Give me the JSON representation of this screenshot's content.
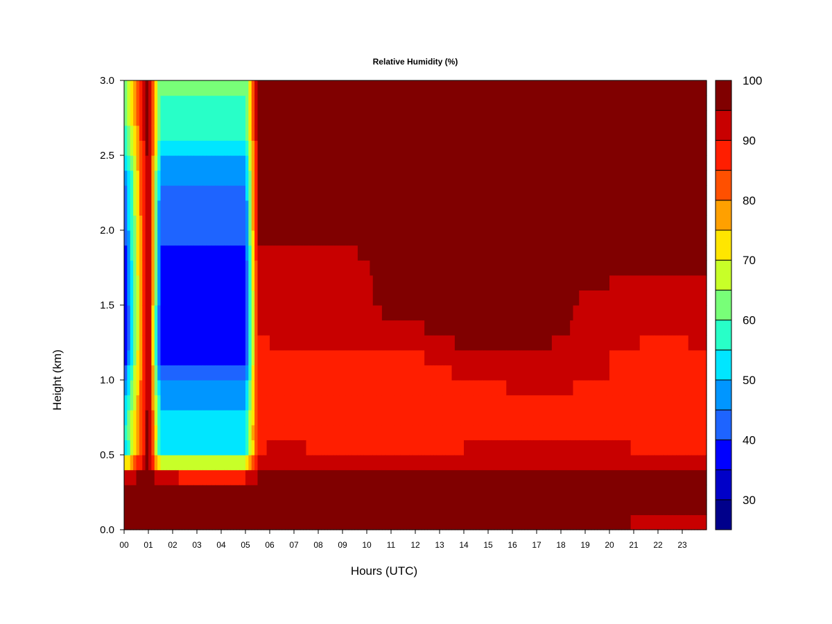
{
  "chart_data": {
    "type": "heatmap",
    "title": "Relative Humidity (%)",
    "xlabel": "Hours (UTC)",
    "ylabel": "Height (km)",
    "xlim": [
      0,
      24
    ],
    "ylim": [
      0,
      3
    ],
    "x_ticks": [
      "00",
      "01",
      "02",
      "03",
      "04",
      "05",
      "06",
      "07",
      "08",
      "09",
      "10",
      "11",
      "12",
      "13",
      "14",
      "15",
      "16",
      "17",
      "18",
      "19",
      "20",
      "21",
      "22",
      "23"
    ],
    "y_ticks": [
      "0.0",
      "0.5",
      "1.0",
      "1.5",
      "2.0",
      "2.5",
      "3.0"
    ],
    "colorbar": {
      "min": 25,
      "max": 100,
      "step": 5,
      "ticks": [
        "30",
        "40",
        "50",
        "60",
        "70",
        "80",
        "90",
        "100"
      ],
      "colors": [
        "#00008b",
        "#0000c8",
        "#0000ff",
        "#1e64ff",
        "#0096ff",
        "#00e6ff",
        "#28ffc8",
        "#78ff78",
        "#c8ff28",
        "#ffe600",
        "#ffa000",
        "#ff5000",
        "#ff1e00",
        "#c80000",
        "#800000"
      ]
    },
    "height_levels_km": [
      0.0,
      0.1,
      0.2,
      0.3,
      0.4,
      0.5,
      0.6,
      0.7,
      0.8,
      0.9,
      1.0,
      1.1,
      1.2,
      1.3,
      1.4,
      1.5,
      1.6,
      1.7,
      1.8,
      1.9,
      2.0,
      2.1,
      2.2,
      2.3,
      2.4,
      2.5,
      2.6,
      2.7,
      2.8,
      2.9,
      3.0
    ],
    "profiles": [
      {
        "hour": 0.0,
        "rh": [
          98,
          98,
          98,
          96,
          88,
          50,
          52,
          53,
          50,
          46,
          42,
          37,
          33,
          32,
          32,
          33,
          33,
          34,
          35,
          36,
          38,
          40,
          41,
          41,
          44,
          51,
          55,
          58,
          60,
          60,
          60
        ]
      },
      {
        "hour": 1.0,
        "rh": [
          98,
          98,
          98,
          98,
          98,
          98,
          98,
          98,
          98,
          98,
          98,
          98,
          98,
          98,
          98,
          98,
          98,
          98,
          98,
          98,
          98,
          98,
          98,
          98,
          98,
          98,
          98,
          98,
          98,
          98,
          98
        ]
      },
      {
        "hour": 1.5,
        "rh": [
          98,
          98,
          98,
          95,
          86,
          52,
          54,
          54,
          51,
          47,
          43,
          38,
          35,
          35,
          36,
          37,
          38,
          38,
          38,
          39,
          41,
          42,
          43,
          44,
          46,
          52,
          56,
          58,
          59,
          60,
          60
        ]
      },
      {
        "hour": 3.0,
        "rh": [
          98,
          98,
          98,
          94,
          85,
          52,
          54,
          54,
          51,
          47,
          44,
          40,
          36,
          35,
          36,
          36,
          37,
          38,
          38,
          39,
          41,
          43,
          44,
          44,
          46,
          52,
          56,
          58,
          59,
          60,
          60
        ]
      },
      {
        "hour": 5.0,
        "rh": [
          98,
          98,
          98,
          94,
          85,
          52,
          54,
          54,
          51,
          47,
          44,
          40,
          36,
          35,
          36,
          36,
          37,
          38,
          38,
          39,
          41,
          43,
          44,
          44,
          46,
          52,
          56,
          58,
          59,
          60,
          60
        ]
      },
      {
        "hour": 5.5,
        "rh": [
          98,
          98,
          98,
          97,
          93,
          88,
          88,
          88,
          88,
          88,
          88,
          88,
          88,
          90,
          90,
          90,
          90,
          90,
          92,
          95,
          95,
          95,
          95,
          95,
          95,
          95,
          95,
          95,
          95,
          95,
          95
        ]
      },
      {
        "hour": 6.0,
        "rh": [
          98,
          98,
          98,
          98,
          97,
          93,
          88,
          88,
          88,
          88,
          88,
          88,
          88,
          92,
          92,
          92,
          92,
          92,
          92,
          95,
          98,
          98,
          98,
          98,
          98,
          98,
          98,
          98,
          98,
          98,
          98
        ]
      },
      {
        "hour": 9.0,
        "rh": [
          98,
          98,
          98,
          98,
          97,
          92,
          87,
          87,
          88,
          88,
          88,
          88,
          88,
          92,
          92,
          92,
          92,
          92,
          93,
          95,
          98,
          98,
          98,
          98,
          98,
          98,
          98,
          98,
          98,
          98,
          98
        ]
      },
      {
        "hour": 11.5,
        "rh": [
          98,
          98,
          98,
          98,
          97,
          90,
          86,
          87,
          88,
          88,
          88,
          88,
          88,
          92,
          95,
          98,
          98,
          98,
          98,
          98,
          98,
          98,
          98,
          98,
          98,
          98,
          98,
          98,
          98,
          98,
          98
        ]
      },
      {
        "hour": 14.0,
        "rh": [
          98,
          98,
          98,
          98,
          97,
          92,
          88,
          88,
          88,
          88,
          89,
          92,
          95,
          97,
          98,
          98,
          98,
          98,
          98,
          98,
          98,
          98,
          98,
          98,
          98,
          98,
          98,
          98,
          98,
          98,
          98
        ]
      },
      {
        "hour": 17.0,
        "rh": [
          95,
          98,
          98,
          98,
          97,
          93,
          90,
          90,
          90,
          90,
          92,
          93,
          95,
          97,
          98,
          98,
          98,
          98,
          98,
          98,
          98,
          98,
          98,
          98,
          98,
          98,
          98,
          98,
          98,
          98,
          98
        ]
      },
      {
        "hour": 20.0,
        "rh": [
          93,
          98,
          98,
          98,
          96,
          92,
          90,
          88,
          88,
          88,
          90,
          90,
          90,
          92,
          92,
          92,
          94,
          96,
          98,
          98,
          98,
          98,
          98,
          98,
          98,
          98,
          98,
          98,
          98,
          98,
          98
        ]
      },
      {
        "hour": 22.5,
        "rh": [
          92,
          96,
          98,
          98,
          95,
          90,
          86,
          85,
          87,
          88,
          88,
          88,
          88,
          90,
          92,
          92,
          92,
          95,
          98,
          98,
          98,
          98,
          98,
          98,
          98,
          98,
          98,
          98,
          98,
          98,
          98
        ]
      },
      {
        "hour": 24.0,
        "rh": [
          92,
          96,
          98,
          98,
          95,
          90,
          88,
          88,
          88,
          90,
          90,
          90,
          90,
          92,
          92,
          92,
          92,
          95,
          98,
          98,
          98,
          98,
          98,
          98,
          98,
          98,
          98,
          98,
          98,
          98,
          98
        ]
      }
    ]
  }
}
